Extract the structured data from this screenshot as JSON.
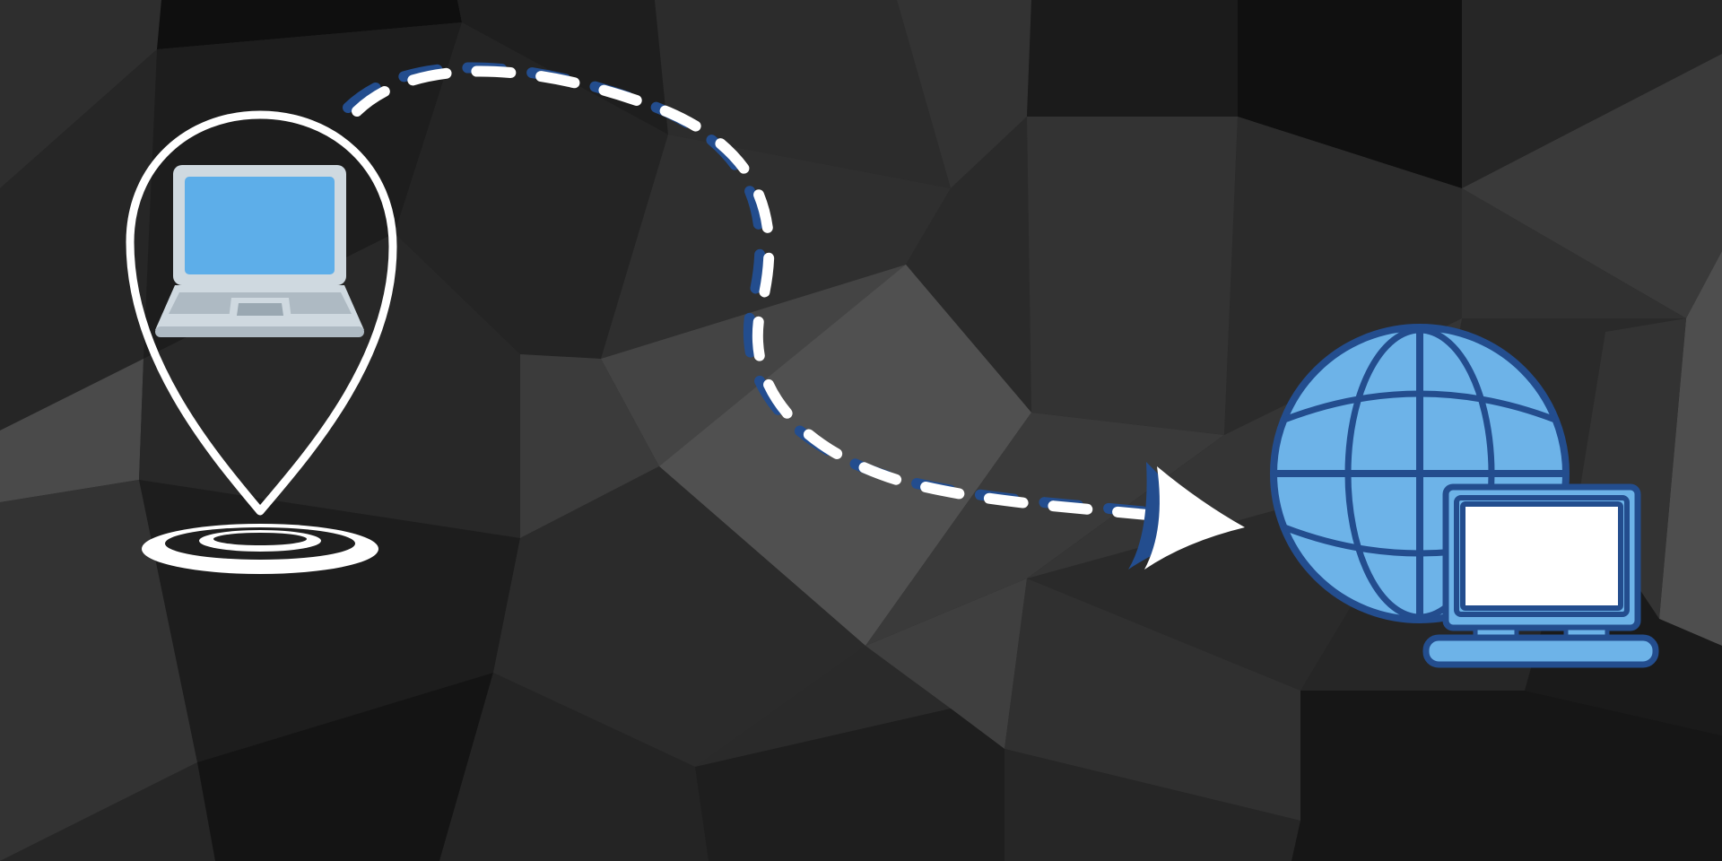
{
  "scene": {
    "source_icon": "laptop-location-pin-icon",
    "transfer_indicator": "dashed-curved-arrow",
    "destination_icon": "globe-with-computer-icon"
  },
  "colors": {
    "background_dark": "#1c1c1c",
    "background_mid": "#2f2f2f",
    "background_light": "#4a4a4a",
    "pin_outline": "#ffffff",
    "laptop_screen": "#5daee9",
    "laptop_body": "#cfd9e0",
    "laptop_keyboard": "#aebac3",
    "accent_dark_blue": "#234d8e",
    "globe_fill": "#6db3e8",
    "monitor_screen": "#ffffff",
    "dash_white": "#ffffff"
  }
}
